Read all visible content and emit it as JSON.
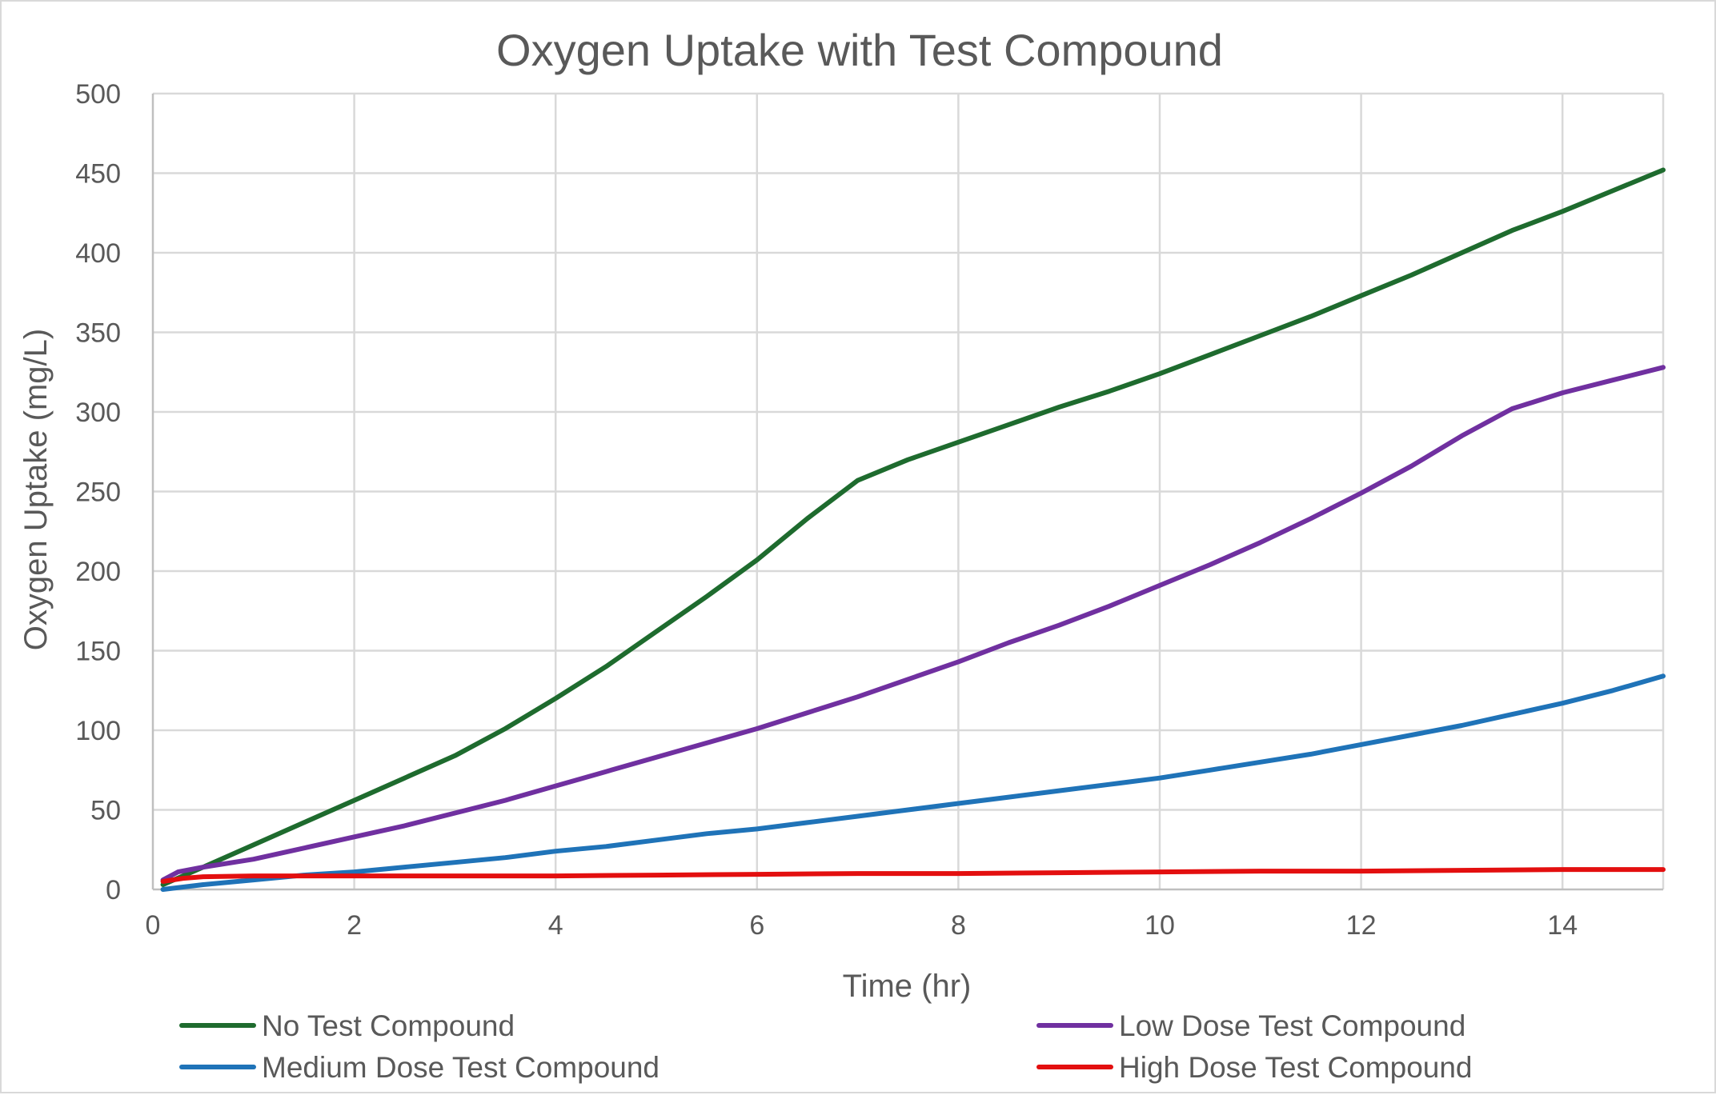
{
  "chart_data": {
    "type": "line",
    "title": "Oxygen Uptake with Test Compound",
    "xlabel": "Time (hr)",
    "ylabel": "Oxygen Uptake (mg/L)",
    "xlim": [
      0,
      15
    ],
    "ylim": [
      0,
      500
    ],
    "x_ticks": [
      0,
      2,
      4,
      6,
      8,
      10,
      12,
      14
    ],
    "y_ticks": [
      0,
      50,
      100,
      150,
      200,
      250,
      300,
      350,
      400,
      450,
      500
    ],
    "grid": true,
    "legend_position": "bottom",
    "series": [
      {
        "name": "No Test Compound",
        "color": "#1e6b2e",
        "x": [
          0.1,
          0.5,
          1,
          1.5,
          2,
          2.5,
          3,
          3.5,
          4,
          4.5,
          5,
          5.5,
          6,
          6.5,
          7,
          7.5,
          8,
          8.5,
          9,
          9.5,
          10,
          10.5,
          11,
          11.5,
          12,
          12.5,
          13,
          13.5,
          14,
          14.5,
          15
        ],
        "y": [
          3,
          14,
          28,
          42,
          56,
          70,
          84,
          101,
          120,
          140,
          162,
          184,
          207,
          233,
          257,
          270,
          281,
          292,
          303,
          313,
          324,
          336,
          348,
          360,
          373,
          386,
          400,
          414,
          426,
          439,
          452
        ]
      },
      {
        "name": "Low Dose Test Compound",
        "color": "#7030a0",
        "x": [
          0.1,
          0.25,
          0.5,
          1,
          1.5,
          2,
          2.5,
          3,
          3.5,
          4,
          4.5,
          5,
          5.5,
          6,
          6.5,
          7,
          7.5,
          8,
          8.5,
          9,
          9.5,
          10,
          10.5,
          11,
          11.5,
          12,
          12.5,
          13,
          13.5,
          13.7,
          14,
          14.5,
          15
        ],
        "y": [
          6,
          11,
          14,
          19,
          26,
          33,
          40,
          48,
          56,
          65,
          74,
          83,
          92,
          101,
          111,
          121,
          132,
          143,
          155,
          166,
          178,
          191,
          204,
          218,
          233,
          249,
          266,
          285,
          302,
          306,
          312,
          320,
          328
        ]
      },
      {
        "name": "Medium Dose Test Compound",
        "color": "#1f73b8",
        "x": [
          0.1,
          0.5,
          1,
          1.5,
          2,
          2.5,
          3,
          3.5,
          4,
          4.5,
          5,
          5.5,
          6,
          6.5,
          7,
          7.5,
          8,
          8.5,
          9,
          9.5,
          10,
          10.5,
          11,
          11.5,
          12,
          12.5,
          13,
          13.5,
          14,
          14.5,
          15
        ],
        "y": [
          0,
          3,
          6,
          9,
          11,
          14,
          17,
          20,
          24,
          27,
          31,
          35,
          38,
          42,
          46,
          50,
          54,
          58,
          62,
          66,
          70,
          75,
          80,
          85,
          91,
          97,
          103,
          110,
          117,
          125,
          134
        ]
      },
      {
        "name": "High Dose Test Compound",
        "color": "#e30f0f",
        "x": [
          0.1,
          0.3,
          0.5,
          1,
          2,
          3,
          4,
          5,
          6,
          7,
          8,
          9,
          10,
          11,
          12,
          13,
          14,
          15
        ],
        "y": [
          5,
          7,
          8,
          8.5,
          8.5,
          8.5,
          8.5,
          9,
          9.5,
          10,
          10,
          10.5,
          11,
          11.5,
          11.5,
          12,
          12.5,
          12.5
        ]
      }
    ]
  }
}
